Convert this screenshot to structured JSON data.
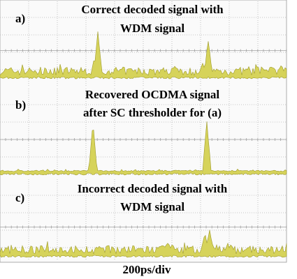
{
  "panels": [
    {
      "label": "a)",
      "title": [
        "Correct decoded signal with",
        "WDM signal"
      ]
    },
    {
      "label": "b)",
      "title": [
        "Recovered OCDMA signal",
        "after SC thresholder for (a)"
      ]
    },
    {
      "label": "c)",
      "title": [
        "Incorrect decoded signal with",
        "WDM signal"
      ]
    }
  ],
  "footer": "200ps/div"
}
